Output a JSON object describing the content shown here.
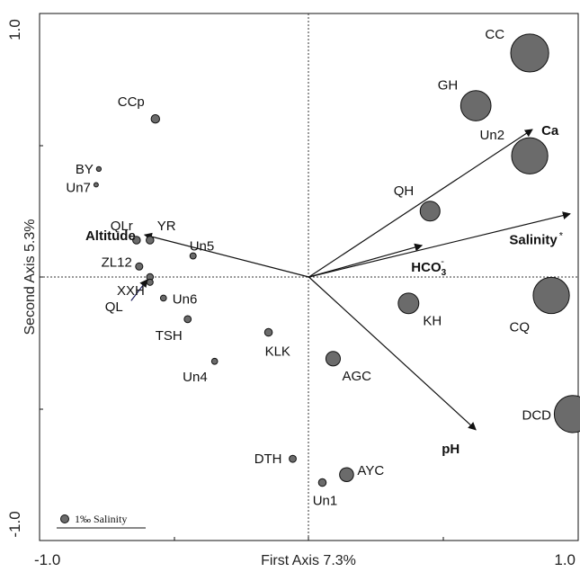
{
  "chart_data": {
    "type": "scatter",
    "xlabel": "First Axis 7.3%",
    "ylabel": "Second Axis 5.3%",
    "xlim": [
      -1.0,
      1.0
    ],
    "ylim": [
      -1.0,
      1.0
    ],
    "x_ticks": [
      "-1.0",
      "1.0"
    ],
    "y_ticks": [
      "1.0",
      "-1.0"
    ],
    "reference_lines": {
      "x": 0,
      "y": 0,
      "style": "dotted"
    },
    "legend": {
      "label": "1‰ Salinity",
      "salinity_value": 1.0,
      "placement": "bottom-left"
    },
    "sites": [
      {
        "name": "CC",
        "x": 0.82,
        "y": 0.85,
        "salinity": 22
      },
      {
        "name": "GH",
        "x": 0.62,
        "y": 0.65,
        "salinity": 14
      },
      {
        "name": "Un2",
        "x": 0.82,
        "y": 0.46,
        "salinity": 20
      },
      {
        "name": "QH",
        "x": 0.45,
        "y": 0.25,
        "salinity": 6
      },
      {
        "name": "CCp",
        "x": -0.57,
        "y": 0.6,
        "salinity": 1.1
      },
      {
        "name": "BY",
        "x": -0.78,
        "y": 0.41,
        "salinity": 0.35
      },
      {
        "name": "Un7",
        "x": -0.79,
        "y": 0.35,
        "salinity": 0.3
      },
      {
        "name": "QLr",
        "x": -0.64,
        "y": 0.14,
        "salinity": 0.9
      },
      {
        "name": "YR",
        "x": -0.59,
        "y": 0.14,
        "salinity": 0.9
      },
      {
        "name": "Un5",
        "x": -0.43,
        "y": 0.08,
        "salinity": 0.6
      },
      {
        "name": "ZL12",
        "x": -0.63,
        "y": 0.04,
        "salinity": 0.8
      },
      {
        "name": "XXH",
        "x": -0.59,
        "y": 0.0,
        "salinity": 0.7
      },
      {
        "name": "QL",
        "x": -0.59,
        "y": -0.02,
        "salinity": 0.6
      },
      {
        "name": "Un6",
        "x": -0.54,
        "y": -0.08,
        "salinity": 0.55
      },
      {
        "name": "TSH",
        "x": -0.45,
        "y": -0.16,
        "salinity": 0.75
      },
      {
        "name": "KLK",
        "x": -0.15,
        "y": -0.21,
        "salinity": 0.9
      },
      {
        "name": "Un4",
        "x": -0.35,
        "y": -0.32,
        "salinity": 0.55
      },
      {
        "name": "AGC",
        "x": 0.09,
        "y": -0.31,
        "salinity": 3.2
      },
      {
        "name": "KH",
        "x": 0.37,
        "y": -0.1,
        "salinity": 6.5
      },
      {
        "name": "CQ",
        "x": 0.9,
        "y": -0.07,
        "salinity": 20
      },
      {
        "name": "DCD",
        "x": 0.98,
        "y": -0.52,
        "salinity": 21
      },
      {
        "name": "DTH",
        "x": -0.06,
        "y": -0.69,
        "salinity": 0.75
      },
      {
        "name": "AYC",
        "x": 0.14,
        "y": -0.75,
        "salinity": 3.0
      },
      {
        "name": "Un1",
        "x": 0.05,
        "y": -0.78,
        "salinity": 0.9
      }
    ],
    "variables": [
      {
        "name": "Ca",
        "x": 0.83,
        "y": 0.56
      },
      {
        "name": "Salinity",
        "x": 0.97,
        "y": 0.24,
        "superscript": "*"
      },
      {
        "name": "HCO",
        "x": 0.42,
        "y": 0.12,
        "subscript": "3",
        "superscript": "-"
      },
      {
        "name": "Altitude",
        "x": -0.61,
        "y": 0.16
      },
      {
        "name": "pH",
        "x": 0.62,
        "y": -0.58
      }
    ]
  }
}
